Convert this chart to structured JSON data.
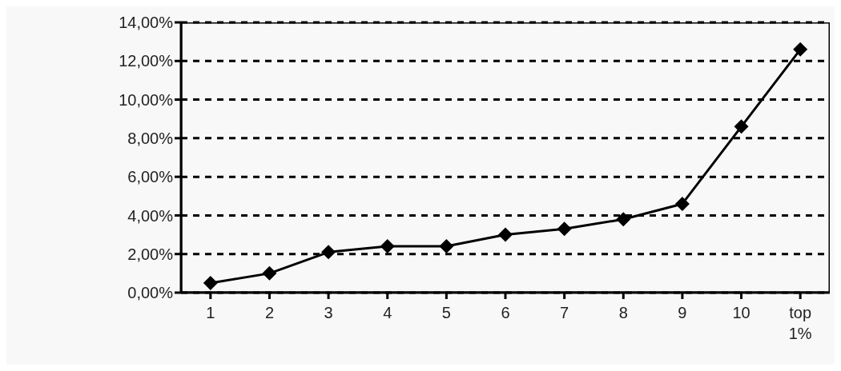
{
  "chart_data": {
    "type": "line",
    "categories": [
      "1",
      "2",
      "3",
      "4",
      "5",
      "6",
      "7",
      "8",
      "9",
      "10",
      "top 1%"
    ],
    "series": [
      {
        "color": "#000000",
        "values": [
          0.5,
          1.0,
          2.1,
          2.4,
          2.4,
          3.0,
          3.3,
          3.8,
          4.6,
          8.6,
          12.6
        ]
      }
    ],
    "ylim": [
      0,
      14
    ],
    "yticks": [
      {
        "value": 0,
        "label": "0,00%"
      },
      {
        "value": 2,
        "label": "2,00%"
      },
      {
        "value": 4,
        "label": "4,00%"
      },
      {
        "value": 6,
        "label": "6,00%"
      },
      {
        "value": 8,
        "label": "8,00%"
      },
      {
        "value": 10,
        "label": "10,00%"
      },
      {
        "value": 12,
        "label": "12,00%"
      },
      {
        "value": 14,
        "label": "14,00%"
      }
    ],
    "grid": "y",
    "marker": "diamond",
    "line_style": "solid"
  }
}
